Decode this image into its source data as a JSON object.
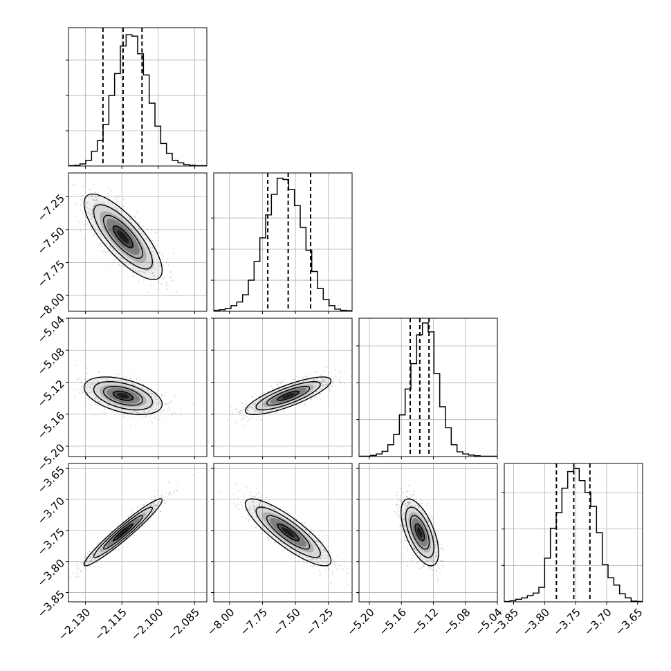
{
  "chart_data": {
    "type": "corner",
    "description_of_style": "corner plot: 1D histograms on diagonal with dashed quantile lines, 2D histograms with scatter points and contours below diagonal",
    "params": [
      {
        "range": [
          -2.137,
          -2.08
        ],
        "ticks": [
          -2.13,
          -2.115,
          -2.1,
          -2.085
        ],
        "tick_labels": [
          "−2.130",
          "−2.115",
          "−2.100",
          "−2.085"
        ],
        "quantiles": [
          -2.1228,
          -2.1145,
          -2.1067
        ],
        "hist": [
          1,
          2,
          6,
          16,
          42,
          72,
          118,
          200,
          262,
          340,
          372,
          368,
          318,
          258,
          178,
          113,
          64,
          36,
          16,
          9,
          4,
          2,
          1,
          1
        ],
        "hist_max": 392
      },
      {
        "range": [
          -8.12,
          -7.07
        ],
        "ticks": [
          -8.0,
          -7.75,
          -7.5,
          -7.25
        ],
        "tick_labels": [
          "−8.00",
          "−7.75",
          "−7.50",
          "−7.25"
        ],
        "quantiles": [
          -7.71,
          -7.555,
          -7.385
        ],
        "hist": [
          3,
          5,
          9,
          18,
          30,
          53,
          100,
          160,
          236,
          310,
          376,
          428,
          424,
          392,
          340,
          270,
          196,
          128,
          73,
          38,
          18,
          7,
          3,
          2
        ],
        "hist_max": 445
      },
      {
        "range": [
          -5.213,
          -5.04
        ],
        "ticks": [
          -5.2,
          -5.16,
          -5.12,
          -5.08,
          -5.04
        ],
        "tick_labels": [
          "−5.20",
          "−5.16",
          "−5.12",
          "−5.08",
          "−5.04"
        ],
        "quantiles": [
          -5.149,
          -5.137,
          -5.1255
        ],
        "hist": [
          1,
          1,
          3,
          7,
          14,
          32,
          60,
          113,
          183,
          252,
          330,
          362,
          338,
          225,
          135,
          78,
          32,
          13,
          7,
          4,
          2,
          1,
          1,
          1
        ],
        "hist_max": 375
      },
      {
        "range": [
          -3.865,
          -3.642
        ],
        "ticks": [
          -3.85,
          -3.8,
          -3.75,
          -3.7,
          -3.65
        ],
        "tick_labels": [
          "−3.85",
          "−3.80",
          "−3.75",
          "−3.70",
          "−3.65"
        ],
        "quantiles": [
          -3.781,
          -3.753,
          -3.727
        ],
        "hist": [
          1,
          3,
          7,
          11,
          17,
          24,
          40,
          120,
          202,
          245,
          312,
          358,
          366,
          333,
          300,
          262,
          190,
          102,
          66,
          46,
          22,
          11,
          2,
          1
        ],
        "hist_max": 380
      }
    ],
    "correlations": {
      "1-0": -0.78,
      "2-0": -0.45,
      "2-1": 0.8,
      "3-0": 0.96,
      "3-1": -0.85,
      "3-2": -0.6
    },
    "contour_levels_sigma": [
      0.5,
      1.0,
      1.5,
      2.0
    ],
    "colors": {
      "hist": "#000000",
      "scatter": "#7f7f7f",
      "grid": "#b0b0b0",
      "density": "#000000"
    },
    "grid": true
  }
}
